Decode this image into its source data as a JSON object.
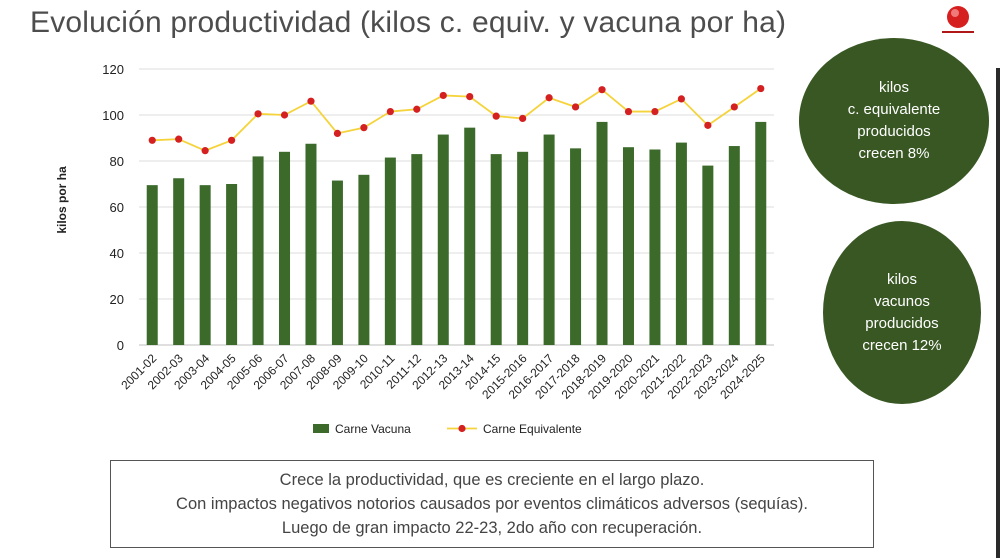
{
  "slide": {
    "title": "Evolución productividad (kilos c. equiv. y vacuna por ha)"
  },
  "bubbles": {
    "equivalente": "kilos\nc. equivalente\nproducidos\ncrecen 8%",
    "vacunos": "kilos\nvacunos\nproducidos\ncrecen 12%"
  },
  "note": {
    "line1": "Crece la productividad, que es creciente en el largo plazo.",
    "line2": "Con impactos negativos notorios causados por eventos climáticos adversos (sequías).",
    "line3": "Luego de gran impacto 22-23, 2do año con recuperación."
  },
  "colors": {
    "bar": "#3b6a2a",
    "line": "#f5d33b",
    "marker": "#d42020",
    "bubble": "#385723"
  },
  "chart_data": {
    "type": "bar",
    "ylabel": "kilos por ha",
    "ylim": [
      0,
      120
    ],
    "yticks": [
      0,
      20,
      40,
      60,
      80,
      100,
      120
    ],
    "grid": true,
    "legend_position": "bottom",
    "categories": [
      "2001-02",
      "2002-03",
      "2003-04",
      "2004-05",
      "2005-06",
      "2006-07",
      "2007-08",
      "2008-09",
      "2009-10",
      "2010-11",
      "2011-12",
      "2012-13",
      "2013-14",
      "2014-15",
      "2015-2016",
      "2016-2017",
      "2017-2018",
      "2018-2019",
      "2019-2020",
      "2020-2021",
      "2021-2022",
      "2022-2023",
      "2023-2024",
      "2024-2025"
    ],
    "series": [
      {
        "name": "Carne Vacuna",
        "kind": "bar",
        "values": [
          69.5,
          72.5,
          69.5,
          70,
          82,
          84,
          87.5,
          71.5,
          74,
          81.5,
          83,
          91.5,
          94.5,
          83,
          84,
          91.5,
          85.5,
          97,
          86,
          85,
          88,
          78,
          86.5,
          97
        ]
      },
      {
        "name": "Carne Equivalente",
        "kind": "line",
        "values": [
          89,
          89.5,
          84.5,
          89,
          100.5,
          100,
          106,
          92,
          94.5,
          101.5,
          102.5,
          108.5,
          108,
          99.5,
          98.5,
          107.5,
          103.5,
          111,
          101.5,
          101.5,
          107,
          95.5,
          103.5,
          111.5
        ]
      }
    ]
  }
}
